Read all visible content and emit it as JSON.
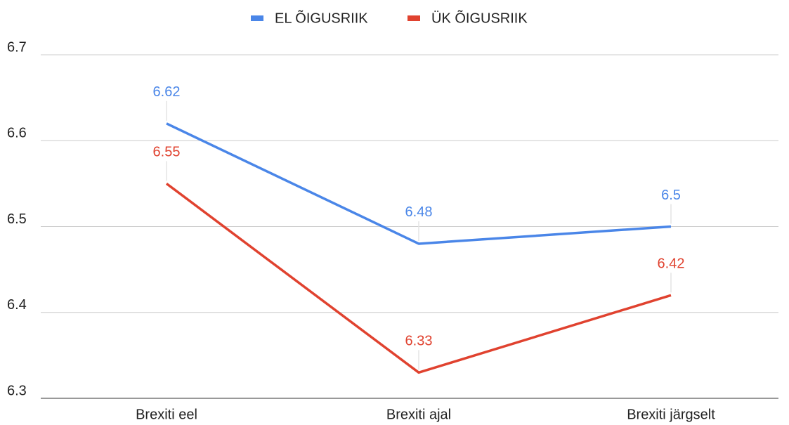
{
  "chart_data": {
    "type": "line",
    "categories": [
      "Brexiti eel",
      "Brexiti ajal",
      "Brexiti järgselt"
    ],
    "series": [
      {
        "name": "EL ÕIGUSRIIK",
        "color": "#4a86e8",
        "values": [
          6.62,
          6.48,
          6.5
        ]
      },
      {
        "name": "ÜK ÕIGUSRIIK",
        "color": "#e0422f",
        "values": [
          6.55,
          6.33,
          6.42
        ]
      }
    ],
    "ylim": [
      6.3,
      6.7
    ],
    "yticks": [
      6.3,
      6.4,
      6.5,
      6.6,
      6.7
    ],
    "grid": true,
    "legend": "top"
  }
}
